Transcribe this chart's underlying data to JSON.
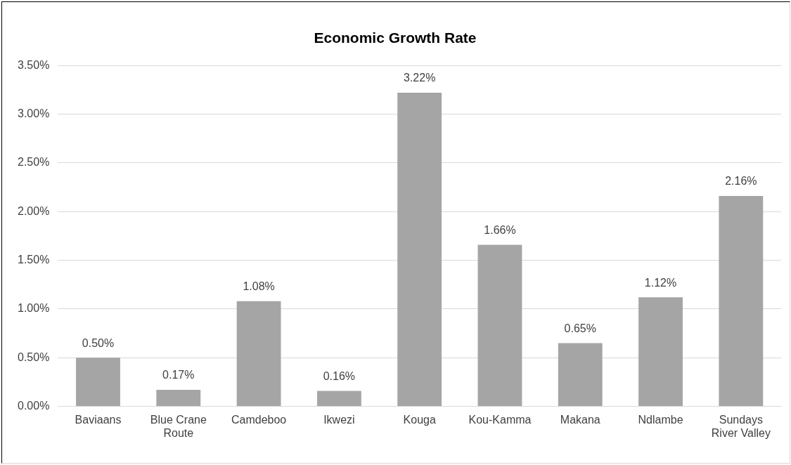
{
  "chart_data": {
    "type": "bar",
    "title": "Economic Growth Rate",
    "categories": [
      "Baviaans",
      "Blue Crane Route",
      "Camdeboo",
      "Ikwezi",
      "Kouga",
      "Kou-Kamma",
      "Makana",
      "Ndlambe",
      "Sundays River Valley"
    ],
    "values": [
      0.5,
      0.17,
      1.08,
      0.16,
      3.22,
      1.66,
      0.65,
      1.12,
      2.16
    ],
    "value_labels": [
      "0.50%",
      "0.17%",
      "1.08%",
      "0.16%",
      "3.22%",
      "1.66%",
      "0.65%",
      "1.12%",
      "2.16%"
    ],
    "color": "#a5a5a5",
    "ylim": [
      0,
      3.5
    ],
    "yticks": [
      {
        "value": 0,
        "label": "0.00%"
      },
      {
        "value": 0.5,
        "label": "0.50%"
      },
      {
        "value": 1,
        "label": "1.00%"
      },
      {
        "value": 1.5,
        "label": "1.50%"
      },
      {
        "value": 2,
        "label": "2.00%"
      },
      {
        "value": 2.5,
        "label": "2.50%"
      },
      {
        "value": 3,
        "label": "3.00%"
      },
      {
        "value": 3.5,
        "label": "3.50%"
      }
    ],
    "grid": "y",
    "legend": false
  }
}
